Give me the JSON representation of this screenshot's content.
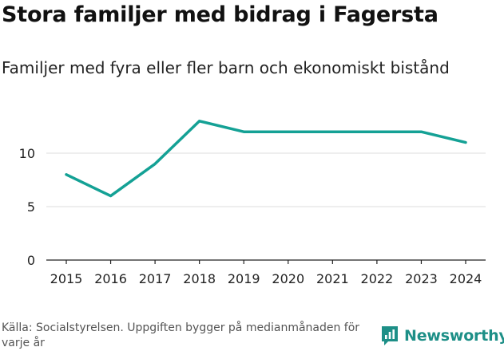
{
  "header": {
    "title": "Stora familjer med bidrag i Fagersta",
    "subtitle": "Familjer med fyra eller fler barn och ekonomiskt bistånd"
  },
  "footer": {
    "source": "Källa: Socialstyrelsen. Uppgiften bygger på medianmånaden för varje år",
    "brand": "Newsworthy"
  },
  "colors": {
    "line": "#14a195",
    "brand": "#1d8f87",
    "grid": "#dddddd",
    "axis": "#222222"
  },
  "chart_data": {
    "type": "line",
    "title": "Stora familjer med bidrag i Fagersta",
    "subtitle": "Familjer med fyra eller fler barn och ekonomiskt bistånd",
    "xlabel": "",
    "ylabel": "",
    "x": [
      2015,
      2016,
      2017,
      2018,
      2019,
      2020,
      2021,
      2022,
      2023,
      2024
    ],
    "x_tick_labels": [
      "2015",
      "2016",
      "2017",
      "2018",
      "2019",
      "2020",
      "2021",
      "2022",
      "2023",
      "2024"
    ],
    "series": [
      {
        "name": "Familjer",
        "values": [
          8,
          6,
          9,
          13,
          12,
          12,
          12,
          12,
          12,
          11
        ]
      }
    ],
    "yticks": [
      0,
      5,
      10
    ],
    "y_tick_labels": [
      "0",
      "5",
      "10"
    ],
    "ylim": [
      0,
      14
    ],
    "grid": true,
    "legend": "none"
  }
}
